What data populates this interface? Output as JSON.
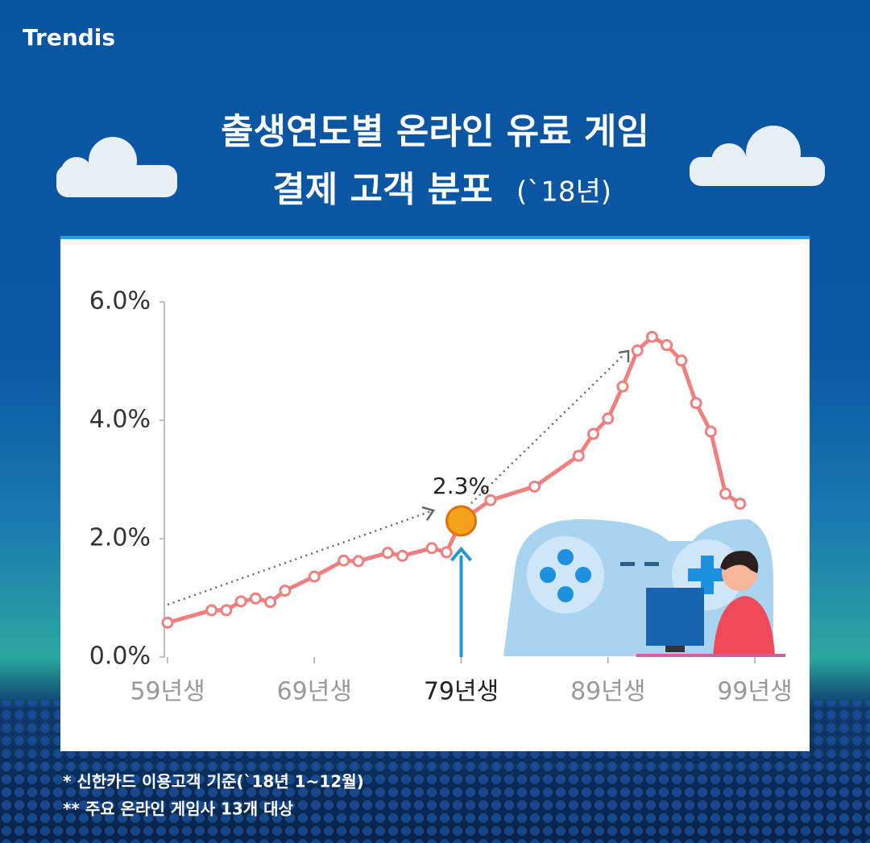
{
  "brand": "Trendis",
  "chart_data": {
    "type": "line",
    "title": [
      "출생연도별 온라인 유료 게임",
      "결제 고객 분포"
    ],
    "subtitle": "(`18년)",
    "x": [
      59,
      62,
      63,
      64,
      65,
      66,
      67,
      69,
      71,
      72,
      74,
      75,
      77,
      78,
      79,
      81,
      84,
      87,
      88,
      89,
      90,
      91,
      92,
      93,
      94,
      95,
      96,
      97,
      98
    ],
    "values": [
      0.58,
      0.79,
      0.79,
      0.94,
      0.99,
      0.93,
      1.12,
      1.36,
      1.63,
      1.62,
      1.76,
      1.71,
      1.84,
      1.77,
      2.3,
      2.65,
      2.88,
      3.4,
      3.77,
      4.03,
      4.57,
      5.18,
      5.41,
      5.27,
      5.01,
      4.29,
      3.81,
      2.76,
      2.59
    ],
    "value_labels": [
      null,
      null,
      null,
      null,
      null,
      null,
      null,
      null,
      null,
      null,
      null,
      null,
      null,
      null,
      "2.3%",
      null,
      null,
      null,
      null,
      null,
      null,
      null,
      null,
      null,
      null,
      null,
      null,
      null,
      null
    ],
    "color": "#f08080",
    "xlim": [
      59,
      99
    ],
    "xticks": [
      {
        "value": 59,
        "label": "59년생"
      },
      {
        "value": 69,
        "label": "69년생"
      },
      {
        "value": 79,
        "label": "79년생"
      },
      {
        "value": 89,
        "label": "89년생"
      },
      {
        "value": 99,
        "label": "99년생"
      }
    ],
    "highlight_x": 79,
    "ylim": [
      0,
      6
    ],
    "yticks": [
      {
        "value": 0,
        "label": "0.0%"
      },
      {
        "value": 2,
        "label": "2.0%"
      },
      {
        "value": 4,
        "label": "4.0%"
      },
      {
        "value": 6,
        "label": "6.0%"
      }
    ],
    "grid": false
  },
  "notes": [
    "* 신한카드 이용고객 기준(`18년 1~12월)",
    "** 주요 온라인 게임사 13개 대상"
  ]
}
